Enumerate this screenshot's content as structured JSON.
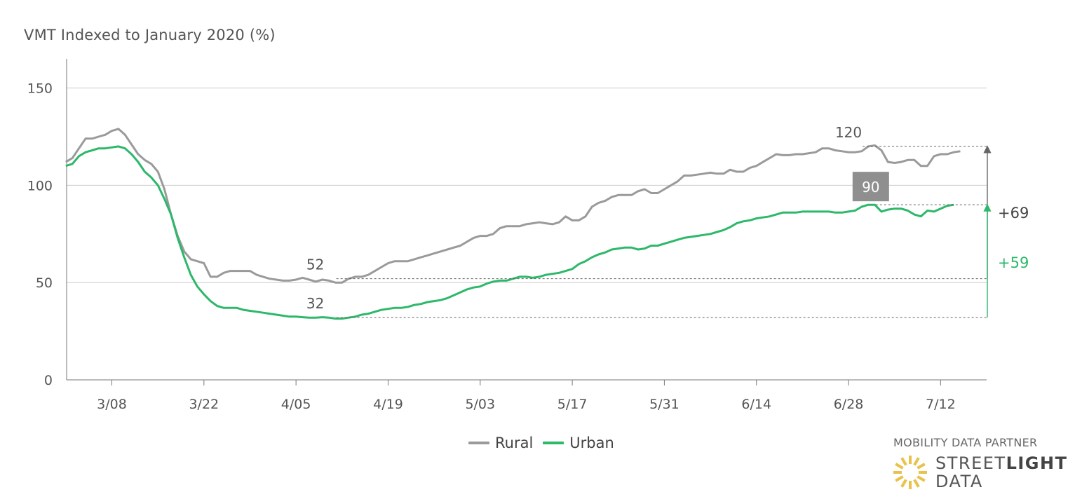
{
  "title": "VMT Indexed to January 2020 (%)",
  "colors": {
    "rural": "#9a9a9a",
    "urban": "#2db86a",
    "grid": "#cccccc",
    "axis": "#555555",
    "box": "#8f8f8f",
    "sun": "#e8c24a"
  },
  "legend": {
    "rural": "Rural",
    "urban": "Urban"
  },
  "partner": {
    "label": "MOBILITY DATA PARTNER",
    "logo_line1_a": "STREET",
    "logo_line1_b": "LIGHT",
    "logo_line2": "DATA",
    "icon": "sun-burst-icon"
  },
  "chart_data": {
    "type": "line",
    "title": "VMT Indexed to January 2020 (%)",
    "ylim": [
      0,
      165
    ],
    "yticks": [
      0,
      50,
      100,
      150
    ],
    "x_start": "3/01",
    "xticks": [
      "3/08",
      "3/22",
      "4/05",
      "4/19",
      "5/03",
      "5/17",
      "5/31",
      "6/14",
      "6/28",
      "7/12"
    ],
    "grid": true,
    "legend_position": "bottom-center",
    "series": [
      {
        "name": "Rural",
        "values": [
          112,
          114,
          119,
          124,
          124,
          125,
          126,
          128,
          129,
          126,
          121,
          116,
          113,
          111,
          107,
          98,
          85,
          74,
          66,
          62,
          61,
          60,
          53,
          53,
          55,
          56,
          56,
          56,
          56,
          54,
          53,
          52,
          51.5,
          51,
          51,
          51.5,
          52.5,
          51.5,
          50.5,
          51.5,
          51,
          50,
          50,
          52,
          53,
          53,
          54,
          56,
          58,
          60,
          61,
          61,
          61,
          62,
          63,
          64,
          65,
          66,
          67,
          68,
          69,
          71,
          73,
          74,
          74,
          75,
          78,
          79,
          79,
          79,
          80,
          80.5,
          81,
          80.5,
          80,
          81,
          84,
          82,
          82,
          84,
          89,
          91,
          92,
          94,
          95,
          95,
          95,
          97,
          98,
          96,
          96,
          98,
          100,
          102,
          105,
          105,
          105.5,
          106,
          106.5,
          106,
          106,
          108,
          107,
          107,
          109,
          110,
          112,
          114,
          116,
          115.5,
          115.5,
          116,
          116,
          116.5,
          117,
          119,
          119,
          118,
          117.5,
          117,
          117,
          117.5,
          120,
          120.5,
          118,
          112,
          111.5,
          112,
          113,
          113,
          110,
          110,
          115,
          116,
          116,
          117,
          117.5
        ]
      },
      {
        "name": "Urban",
        "values": [
          110,
          111,
          115,
          117,
          118,
          119,
          119,
          119.5,
          120,
          119,
          116,
          112,
          107,
          104,
          100,
          93,
          85,
          73,
          63,
          54,
          48,
          44,
          40.5,
          38,
          37,
          37,
          37,
          36,
          35.5,
          35,
          34.5,
          34,
          33.5,
          33,
          32.5,
          32.5,
          32.2,
          32,
          32,
          32.2,
          32,
          31.5,
          31.5,
          32,
          32.5,
          33.5,
          34,
          35,
          36,
          36.5,
          37,
          37,
          37.5,
          38.5,
          39,
          40,
          40.5,
          41,
          42,
          43.5,
          45,
          46.5,
          47.5,
          48,
          49.5,
          50.5,
          51,
          51,
          52,
          53,
          53,
          52.5,
          53,
          54,
          54.5,
          55,
          56,
          57,
          59.5,
          61,
          63,
          64.5,
          65.5,
          67,
          67.5,
          68,
          68,
          67,
          67.5,
          69,
          69,
          70,
          71,
          72,
          73,
          73.5,
          74,
          74.5,
          75,
          76,
          77,
          78.5,
          80.5,
          81.5,
          82,
          83,
          83.5,
          84,
          85,
          86,
          86,
          86,
          86.5,
          86.5,
          86.5,
          86.5,
          86.5,
          86,
          86,
          86.5,
          87,
          89,
          90,
          90,
          86.5,
          87.5,
          88,
          88,
          87,
          85,
          84,
          87,
          86.5,
          88,
          89.5,
          90
        ]
      }
    ],
    "annotations": [
      {
        "text": "52",
        "series": "Rural",
        "value": 52,
        "date": "4/09"
      },
      {
        "text": "32",
        "series": "Urban",
        "value": 32,
        "date": "4/09"
      },
      {
        "text": "120",
        "series": "Rural",
        "value": 120,
        "date": "6/28"
      },
      {
        "text": "90",
        "series": "Urban",
        "value": 90,
        "date": "6/30"
      },
      {
        "text": "+69",
        "series": "Rural",
        "from": 52,
        "to": 120
      },
      {
        "text": "+59",
        "series": "Urban",
        "from": 32,
        "to": 90
      }
    ]
  }
}
